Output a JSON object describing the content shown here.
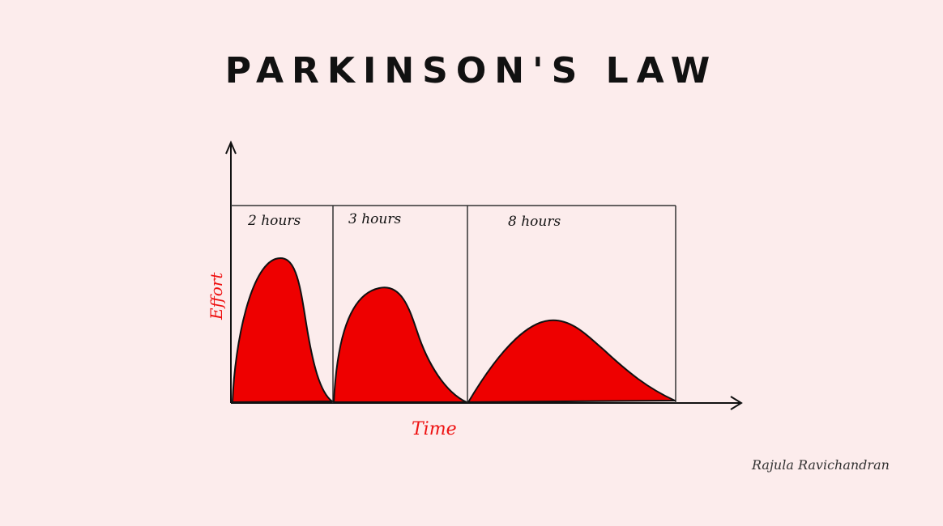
{
  "title": "PARKINSON'S LAW",
  "axes": {
    "x_label": "Time",
    "y_label": "Effort"
  },
  "panels": [
    {
      "label": "2 hours",
      "peak": 0.74
    },
    {
      "label": "3 hours",
      "peak": 0.59
    },
    {
      "label": "8 hours",
      "peak": 0.43
    }
  ],
  "signature": "Rajula Ravichandran",
  "colors": {
    "background": "#fcecec",
    "fill": "#ee0000",
    "ink": "#111111",
    "label": "#ee1111"
  }
}
